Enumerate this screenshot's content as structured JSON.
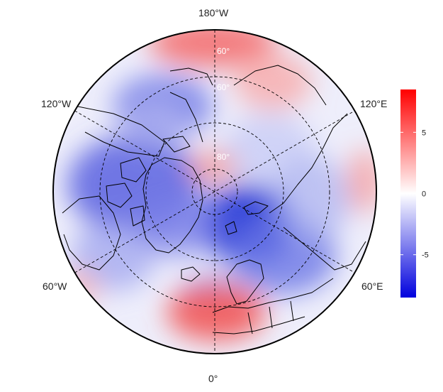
{
  "map": {
    "projection": "north-polar-stereographic",
    "longitude_labels": [
      "180°W",
      "120°W",
      "120°E",
      "60°W",
      "60°E",
      "0°"
    ],
    "latitude_labels": [
      "60°",
      "60°",
      "80°"
    ],
    "grid": "dashed"
  },
  "colorbar": {
    "range": [
      -8.5,
      8.5
    ],
    "ticks": [
      5,
      0,
      -5
    ],
    "tick_labels": [
      "5",
      "0",
      "-5"
    ],
    "colors": {
      "min": "#0000dd",
      "mid": "#ffffff",
      "max": "#ff0000"
    }
  },
  "anomaly_field": {
    "note_colors": {
      "negative": "#1a2fd6",
      "positive": "#f23a3a"
    }
  }
}
